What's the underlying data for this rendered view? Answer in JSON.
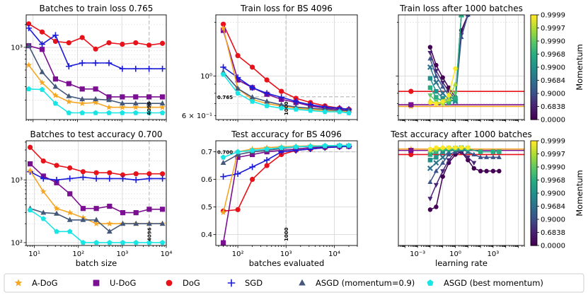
{
  "chart_data": [
    {
      "id": "p00",
      "type": "line",
      "title": "Batches to train loss 0.765",
      "xscale": "log",
      "yscale": "log",
      "xlim": [
        7,
        10000
      ],
      "ylim": [
        110,
        2700
      ],
      "xlabel": "",
      "xticks": [],
      "xtick_labels": [],
      "yticks": [
        1000
      ],
      "ytick_labels": [
        "10³"
      ],
      "vline": {
        "x": 4096,
        "label": "4096"
      },
      "x": [
        8,
        16,
        32,
        64,
        128,
        256,
        512,
        1024,
        2048,
        4096,
        8192
      ],
      "series": [
        {
          "name": "DoG",
          "values": [
            2050,
            1600,
            1200,
            1150,
            1350,
            950,
            1150,
            1100,
            1150,
            1070,
            1130
          ]
        },
        {
          "name": "U-DoG",
          "values": [
            1050,
            940,
            380,
            330,
            280,
            280,
            220,
            220,
            220,
            220,
            220
          ]
        },
        {
          "name": "SGD",
          "values": [
            1800,
            1100,
            1450,
            560,
            620,
            620,
            620,
            520,
            520,
            520,
            520
          ]
        },
        {
          "name": "A-DoG",
          "values": [
            580,
            340,
            230,
            190,
            180,
            185,
            160,
            160,
            160,
            160,
            160
          ]
        },
        {
          "name": "ASGD (momentum=0.9)",
          "values": [
            1050,
            470,
            300,
            225,
            205,
            205,
            200,
            180,
            180,
            180,
            180
          ]
        },
        {
          "name": "ASGD (best momentum)",
          "values": [
            280,
            275,
            180,
            135,
            135,
            135,
            135,
            135,
            135,
            135,
            135
          ]
        }
      ]
    },
    {
      "id": "p01",
      "type": "line",
      "title": "Train loss for BS 4096",
      "xscale": "log",
      "yscale": "log",
      "xlim": [
        35,
        30000
      ],
      "ylim": [
        0.57,
        2.2
      ],
      "xlabel": "",
      "xticks": [],
      "xtick_labels": [],
      "yticks": [
        1.0,
        0.6
      ],
      "ytick_labels": [
        "10⁰",
        "6 × 10⁻¹"
      ],
      "vline": {
        "x": 1000,
        "label": "1000"
      },
      "hline": {
        "y": 0.765,
        "label": "0.765"
      },
      "x": [
        50,
        100,
        200,
        400,
        800,
        1600,
        3200,
        6400,
        12800,
        20000
      ],
      "series": [
        {
          "name": "DoG",
          "values": [
            1.95,
            1.3,
            1.12,
            0.95,
            0.82,
            0.75,
            0.71,
            0.68,
            0.66,
            0.65
          ]
        },
        {
          "name": "U-DoG",
          "values": [
            1.8,
            0.95,
            0.86,
            0.79,
            0.74,
            0.71,
            0.68,
            0.66,
            0.65,
            0.64
          ]
        },
        {
          "name": "SGD",
          "values": [
            1.12,
            0.98,
            0.86,
            0.8,
            0.76,
            0.72,
            0.69,
            0.67,
            0.66,
            0.65
          ]
        },
        {
          "name": "A-DoG",
          "values": [
            1.85,
            0.85,
            0.74,
            0.7,
            0.68,
            0.66,
            0.65,
            0.64,
            0.63,
            0.63
          ]
        },
        {
          "name": "ASGD (momentum=0.9)",
          "values": [
            1.05,
            0.85,
            0.76,
            0.72,
            0.69,
            0.67,
            0.66,
            0.65,
            0.64,
            0.64
          ]
        },
        {
          "name": "ASGD (best momentum)",
          "values": [
            1.02,
            0.8,
            0.72,
            0.68,
            0.66,
            0.65,
            0.64,
            0.63,
            0.63,
            0.62
          ]
        }
      ]
    },
    {
      "id": "p02",
      "type": "line",
      "title": "Train loss after 1000 batches",
      "xscale": "log",
      "yscale": "log",
      "xlim": [
        3e-05,
        300000
      ],
      "ylim": [
        0.57,
        2.2
      ],
      "xlabel": "",
      "xticks": [],
      "xtick_labels": [],
      "yticks": [],
      "ytick_labels": [],
      "hlines": [
        {
          "name": "DoG",
          "y": 0.82
        },
        {
          "name": "A-DoG",
          "y": 0.675
        },
        {
          "name": "U-DoG",
          "y": 0.69
        }
      ],
      "momentum_series": [
        {
          "m": 0.0,
          "x": [
            0.01,
            0.03,
            0.1,
            0.3,
            1,
            3,
            10
          ],
          "values": [
            1.45,
            1.15,
            0.98,
            0.86,
            0.76,
            1.8,
            2.2
          ]
        },
        {
          "m": 0.6838,
          "x": [
            0.01,
            0.03,
            0.1,
            0.3,
            1,
            3,
            10
          ],
          "values": [
            1.35,
            1.07,
            0.92,
            0.82,
            0.74,
            1.7,
            2.2
          ]
        },
        {
          "m": 0.9,
          "x": [
            0.01,
            0.03,
            0.1,
            0.3,
            1,
            3,
            10
          ],
          "values": [
            1.25,
            1.0,
            0.87,
            0.78,
            0.73,
            1.65,
            2.2
          ]
        },
        {
          "m": 0.9684,
          "x": [
            0.01,
            0.03,
            0.1,
            0.3,
            1,
            3
          ],
          "values": [
            1.12,
            0.92,
            0.8,
            0.74,
            0.72,
            2.2
          ]
        },
        {
          "m": 0.99,
          "x": [
            0.01,
            0.03,
            0.1,
            0.3,
            1,
            3
          ],
          "values": [
            0.97,
            0.82,
            0.75,
            0.72,
            0.73,
            2.2
          ]
        },
        {
          "m": 0.9968,
          "x": [
            0.01,
            0.03,
            0.1,
            0.3,
            1,
            3
          ],
          "values": [
            0.86,
            0.76,
            0.72,
            0.71,
            0.75,
            2.2
          ]
        },
        {
          "m": 0.999,
          "x": [
            0.01,
            0.03,
            0.1,
            0.3,
            1
          ],
          "values": [
            0.78,
            0.72,
            0.7,
            0.72,
            0.8
          ]
        },
        {
          "m": 0.9997,
          "x": [
            0.01,
            0.03,
            0.1,
            0.3,
            1
          ],
          "values": [
            0.73,
            0.7,
            0.7,
            0.74,
            0.9
          ]
        },
        {
          "m": 0.9999,
          "x": [
            0.01,
            0.03,
            0.1,
            0.3,
            1
          ],
          "values": [
            0.71,
            0.7,
            0.72,
            0.78,
            1.1
          ]
        }
      ],
      "colorbar": {
        "label": "Momentum",
        "ticks": [
          "0.9999",
          "0.9997",
          "0.9990",
          "0.9968",
          "0.9900",
          "0.9684",
          "0.9000",
          "0.6838",
          "0.0000"
        ]
      }
    },
    {
      "id": "p10",
      "type": "line",
      "title": "Batches to test accuracy 0.700",
      "xscale": "log",
      "yscale": "log",
      "xlim": [
        6.5,
        10000
      ],
      "ylim": [
        90,
        4200
      ],
      "xlabel": "batch size",
      "xticks": [
        10,
        100,
        1000,
        10000
      ],
      "xtick_labels": [
        "10¹",
        "10²",
        "10³",
        "10⁴"
      ],
      "yticks": [
        100,
        1000
      ],
      "ytick_labels": [
        "10²",
        "10³"
      ],
      "vline": {
        "x": 4096,
        "label": "4096"
      },
      "x": [
        8,
        16,
        32,
        64,
        128,
        256,
        512,
        1024,
        2048,
        4096,
        8192
      ],
      "series": [
        {
          "name": "DoG",
          "values": [
            3300,
            2000,
            1700,
            1550,
            1350,
            1300,
            1300,
            1200,
            1250,
            1250,
            1250
          ]
        },
        {
          "name": "U-DoG",
          "values": [
            1800,
            1150,
            900,
            600,
            350,
            350,
            380,
            300,
            300,
            340,
            340
          ]
        },
        {
          "name": "SGD",
          "values": [
            1350,
            1050,
            1000,
            1050,
            1100,
            1050,
            1050,
            1050,
            1000,
            1050,
            1050
          ]
        },
        {
          "name": "A-DoG",
          "values": [
            1400,
            650,
            350,
            300,
            250,
            200,
            200,
            200,
            200,
            200,
            200
          ]
        },
        {
          "name": "ASGD (momentum=0.9)",
          "values": [
            350,
            300,
            290,
            230,
            230,
            230,
            150,
            200,
            200,
            200,
            200
          ]
        },
        {
          "name": "ASGD (best momentum)",
          "values": [
            330,
            240,
            150,
            150,
            100,
            100,
            100,
            100,
            100,
            100,
            100
          ]
        }
      ]
    },
    {
      "id": "p11",
      "type": "line",
      "title": "Test accuracy for BS 4096",
      "xscale": "log",
      "yscale": "linear",
      "xlim": [
        35,
        30000
      ],
      "ylim": [
        0.36,
        0.74
      ],
      "xlabel": "batches evaluated",
      "xticks": [
        100,
        1000,
        10000
      ],
      "xtick_labels": [
        "10²",
        "10³",
        "10⁴"
      ],
      "yticks": [
        0.4,
        0.5,
        0.6,
        0.7
      ],
      "ytick_labels": [
        "0.4",
        "0.5",
        "0.6",
        "0.7"
      ],
      "vline": {
        "x": 1000,
        "label": "1000"
      },
      "hline": {
        "y": 0.7,
        "label": "0.700"
      },
      "x": [
        50,
        100,
        200,
        400,
        800,
        1600,
        3200,
        6400,
        12800,
        20000
      ],
      "series": [
        {
          "name": "DoG",
          "values": [
            0.485,
            0.49,
            0.6,
            0.65,
            0.69,
            0.705,
            0.71,
            0.715,
            0.718,
            0.72
          ]
        },
        {
          "name": "U-DoG",
          "values": [
            0.37,
            0.68,
            0.69,
            0.7,
            0.705,
            0.71,
            0.715,
            0.718,
            0.72,
            0.72
          ]
        },
        {
          "name": "SGD",
          "values": [
            0.61,
            0.62,
            0.645,
            0.67,
            0.7,
            0.705,
            0.71,
            0.715,
            0.718,
            0.72
          ]
        },
        {
          "name": "A-DoG",
          "values": [
            0.48,
            0.7,
            0.71,
            0.715,
            0.718,
            0.72,
            0.722,
            0.722,
            0.723,
            0.723
          ]
        },
        {
          "name": "ASGD (momentum=0.9)",
          "values": [
            0.66,
            0.69,
            0.7,
            0.705,
            0.712,
            0.718,
            0.72,
            0.72,
            0.722,
            0.722
          ]
        },
        {
          "name": "ASGD (best momentum)",
          "values": [
            0.68,
            0.7,
            0.705,
            0.71,
            0.715,
            0.718,
            0.72,
            0.722,
            0.723,
            0.723
          ]
        }
      ]
    },
    {
      "id": "p12",
      "type": "line",
      "title": "Test accuracy after 1000 batches",
      "xscale": "log",
      "yscale": "linear",
      "xlim": [
        3e-05,
        300000
      ],
      "ylim": [
        0.36,
        0.74
      ],
      "xlabel": "learning rate",
      "xticks": [
        0.001,
        1,
        1000
      ],
      "xtick_labels": [
        "10⁻³",
        "10⁰",
        "10³"
      ],
      "yticks": [],
      "ytick_labels": [],
      "hlines": [
        {
          "name": "DoG",
          "y": 0.69
        },
        {
          "name": "A-DoG",
          "y": 0.71
        },
        {
          "name": "U-DoG",
          "y": 0.705
        }
      ],
      "momentum_series": [
        {
          "m": 0.0,
          "x": [
            0.01,
            0.03,
            0.1,
            0.3,
            1,
            3,
            10,
            30,
            100,
            300,
            1000,
            3000
          ],
          "values": [
            0.49,
            0.5,
            0.61,
            0.66,
            0.69,
            0.7,
            0.67,
            0.64,
            0.63,
            0.63,
            0.63,
            0.63
          ]
        },
        {
          "m": 0.6838,
          "x": [
            0.01,
            0.03,
            0.1,
            0.3,
            1,
            3,
            10,
            30
          ],
          "values": [
            0.53,
            0.58,
            0.63,
            0.67,
            0.7,
            0.7,
            0.68,
            0.66
          ]
        },
        {
          "m": 0.9,
          "x": [
            0.01,
            0.03,
            0.1,
            0.3,
            1,
            3,
            10,
            30,
            100,
            300,
            1000,
            3000
          ],
          "values": [
            0.59,
            0.63,
            0.66,
            0.69,
            0.7,
            0.71,
            0.7,
            0.69,
            0.68,
            0.68,
            0.68,
            0.68
          ]
        },
        {
          "m": 0.9684,
          "x": [
            0.01,
            0.03,
            0.1,
            0.3,
            1,
            3,
            10
          ],
          "values": [
            0.64,
            0.66,
            0.68,
            0.7,
            0.71,
            0.71,
            0.7
          ]
        },
        {
          "m": 0.99,
          "x": [
            0.01,
            0.03,
            0.1,
            0.3,
            1,
            3,
            10
          ],
          "values": [
            0.67,
            0.68,
            0.7,
            0.71,
            0.71,
            0.71,
            0.71
          ]
        },
        {
          "m": 0.9968,
          "x": [
            0.01,
            0.03,
            0.1,
            0.3,
            1,
            3,
            10,
            100,
            1000,
            3000
          ],
          "values": [
            0.69,
            0.7,
            0.71,
            0.71,
            0.71,
            0.715,
            0.71,
            0.7,
            0.7,
            0.7
          ]
        },
        {
          "m": 0.999,
          "x": [
            0.01,
            0.03,
            0.1,
            0.3,
            1,
            3,
            10
          ],
          "values": [
            0.7,
            0.705,
            0.71,
            0.715,
            0.715,
            0.715,
            0.715
          ]
        },
        {
          "m": 0.9997,
          "x": [
            0.01,
            0.03,
            0.1,
            0.3,
            1,
            3,
            10
          ],
          "values": [
            0.705,
            0.71,
            0.715,
            0.715,
            0.715,
            0.715,
            0.715
          ]
        },
        {
          "m": 0.9999,
          "x": [
            0.01,
            0.03,
            0.1,
            0.3,
            1,
            3,
            10
          ],
          "values": [
            0.71,
            0.715,
            0.715,
            0.715,
            0.715,
            0.715,
            0.715
          ]
        }
      ],
      "colorbar": {
        "label": "Momentum",
        "ticks": [
          "0.9999",
          "0.9997",
          "0.9990",
          "0.9968",
          "0.9900",
          "0.9684",
          "0.9000",
          "0.6838",
          "0.0000"
        ]
      }
    }
  ],
  "legend": [
    {
      "name": "A-DoG",
      "marker": "star",
      "color": "#f5a623"
    },
    {
      "name": "U-DoG",
      "marker": "square",
      "color": "#7b0f91"
    },
    {
      "name": "DoG",
      "marker": "circle",
      "color": "#e8121a"
    },
    {
      "name": "SGD",
      "marker": "plus",
      "color": "#1a1adb"
    },
    {
      "name": "ASGD (momentum=0.9)",
      "marker": "triangle",
      "color": "#44587a"
    },
    {
      "name": "ASGD (best momentum)",
      "marker": "pentagon",
      "color": "#19e5e5"
    }
  ],
  "colors": {
    "DoG": "#e8121a",
    "U-DoG": "#7b0f91",
    "SGD": "#1a1adb",
    "A-DoG": "#f5a623",
    "ASGD (momentum=0.9)": "#44587a",
    "ASGD (best momentum)": "#19e5e5"
  }
}
